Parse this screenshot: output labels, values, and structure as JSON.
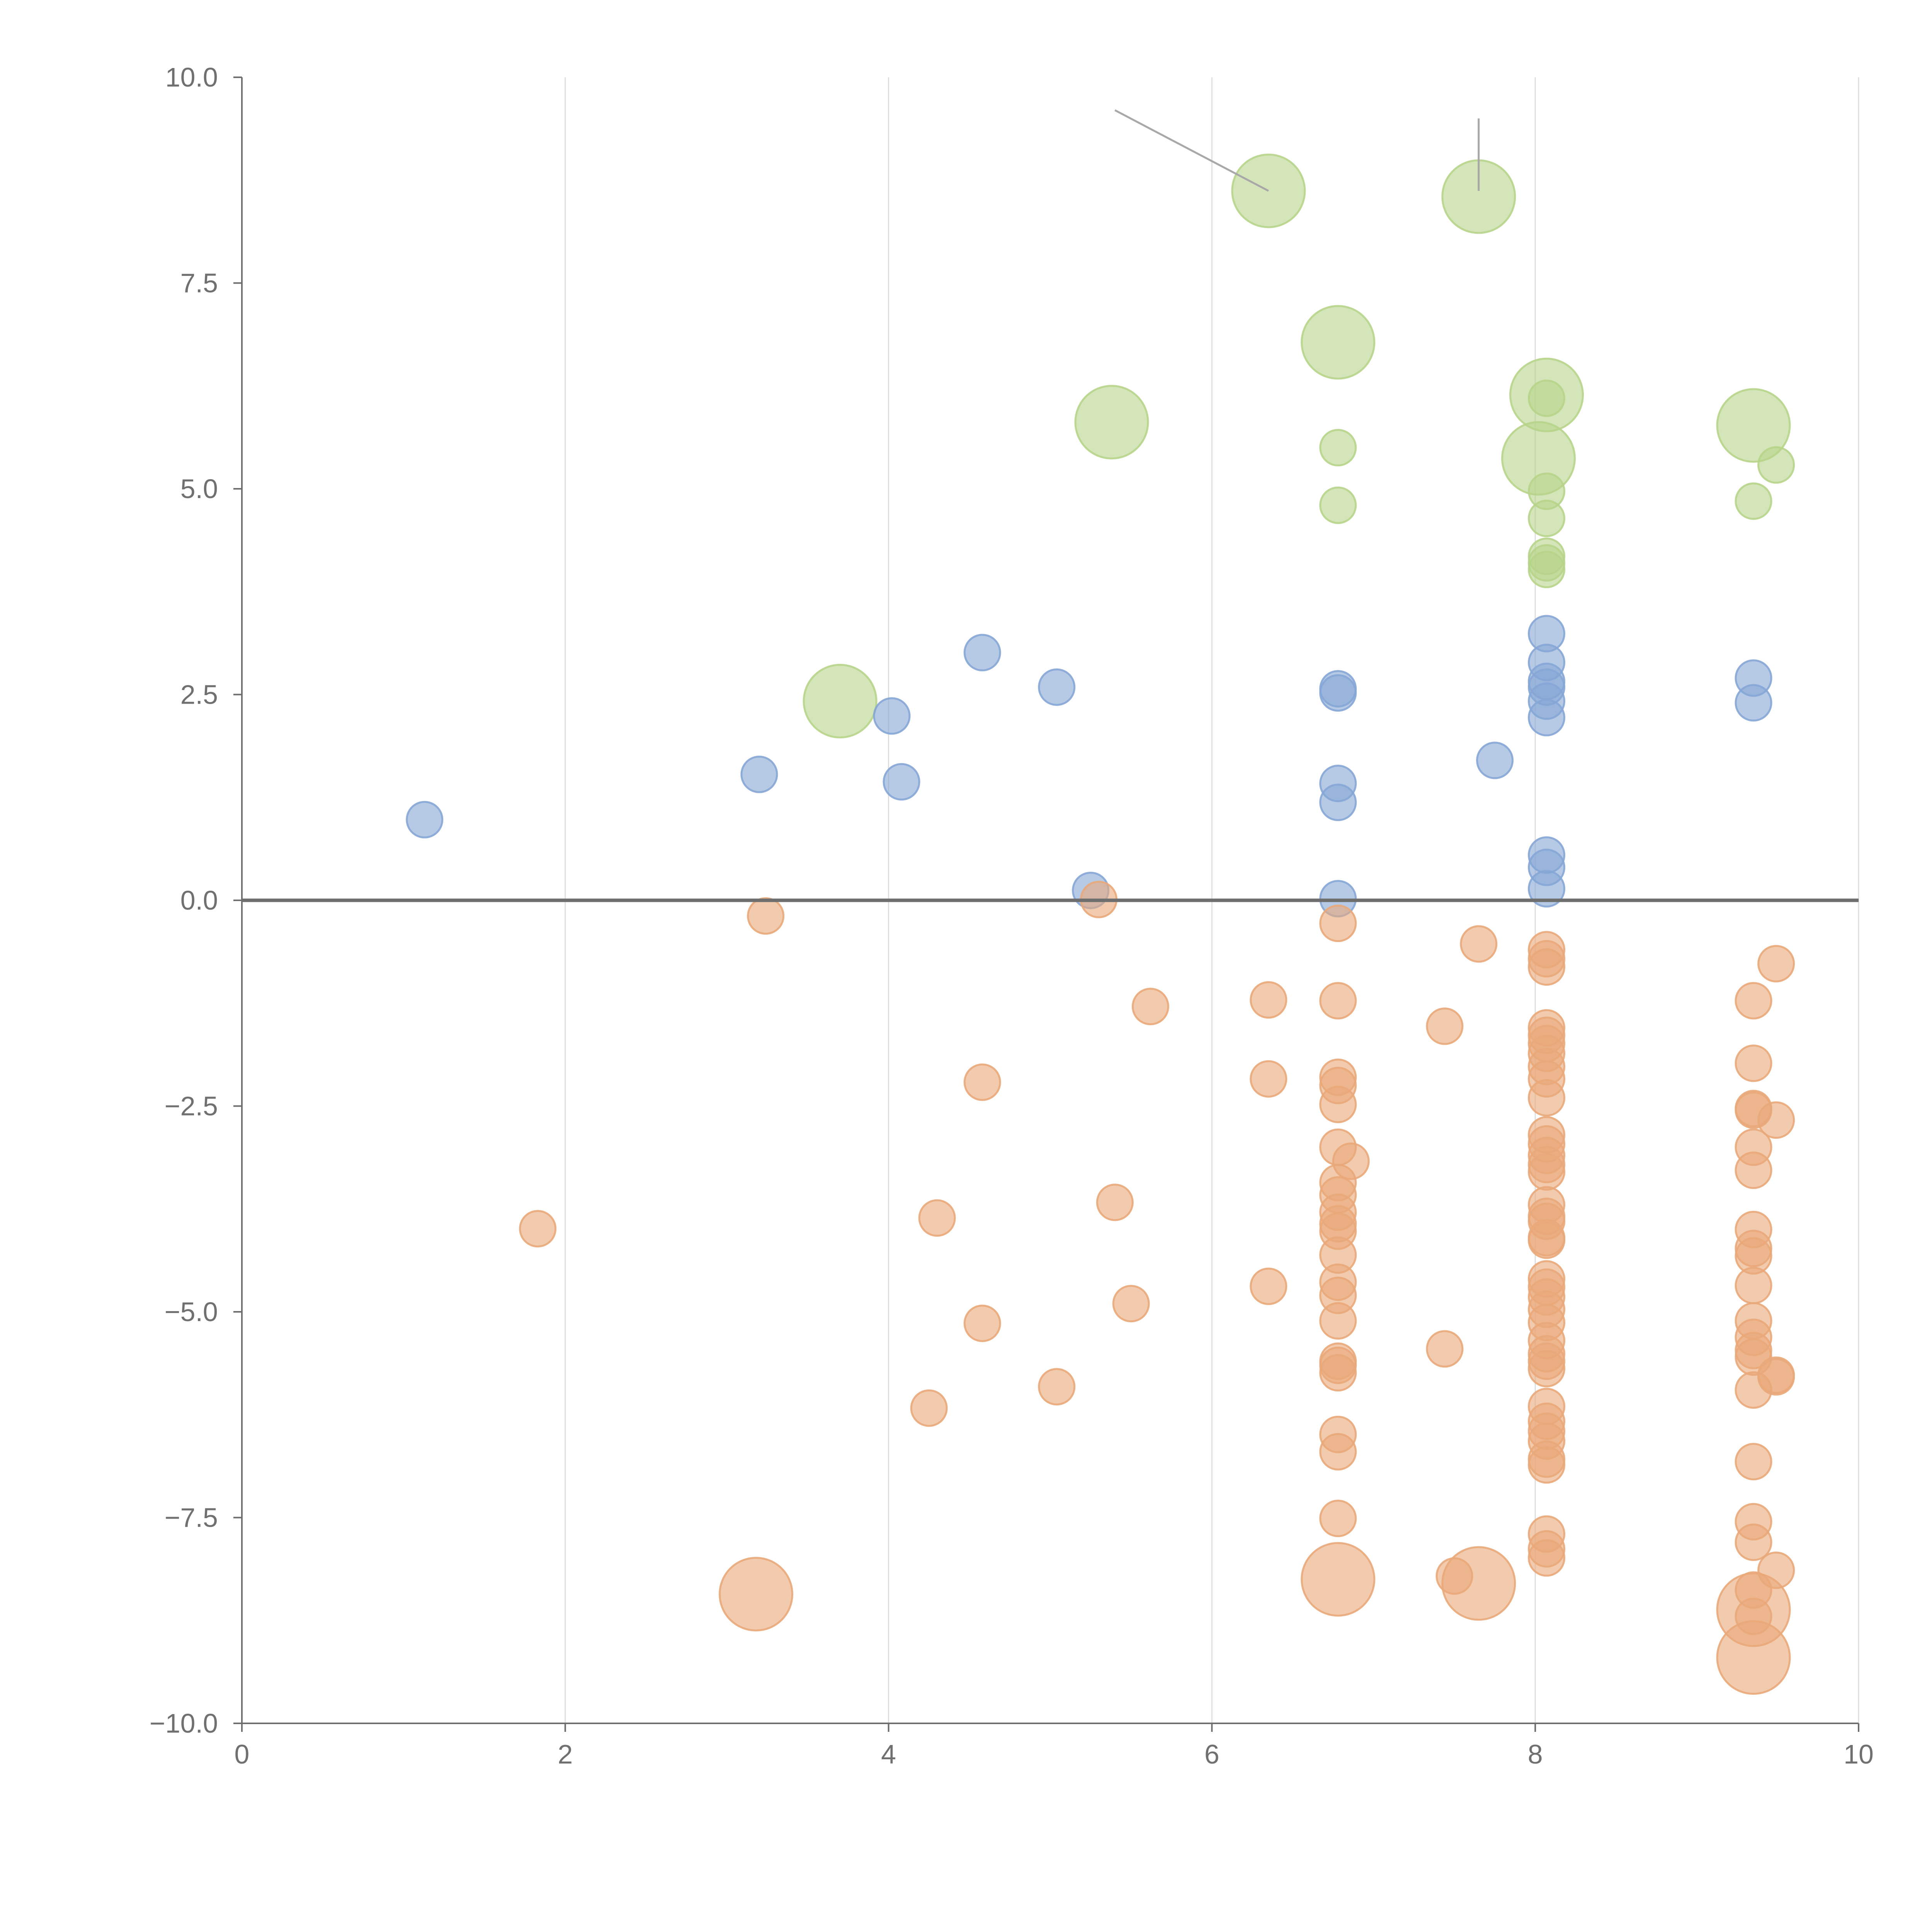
{
  "chart_data": {
    "type": "scatter",
    "title": "",
    "xlabel": "",
    "ylabel": "",
    "xlim": [
      0,
      10
    ],
    "ylim": [
      -10,
      10
    ],
    "grid": "vertical",
    "legend": "none",
    "x_ticks": [
      "0",
      "2",
      "4",
      "6",
      "8",
      "10"
    ],
    "y_ticks": [
      "10.0",
      "7.5",
      "5.0",
      "2.5",
      "0.0",
      "−2.5",
      "−5.0",
      "−7.5",
      "−10.0"
    ],
    "colors": {
      "green": "#b7d48b",
      "blue": "#86a6d6",
      "orange": "#e9a97a"
    },
    "series": [
      {
        "name": "green",
        "points": [
          [
            3.7,
            2.42,
            "large"
          ],
          [
            5.38,
            5.81,
            "large"
          ],
          [
            6.35,
            8.62,
            "large"
          ],
          [
            7.65,
            8.55,
            "large"
          ],
          [
            6.78,
            6.78,
            "large"
          ],
          [
            8.07,
            6.14,
            "large"
          ],
          [
            8.02,
            5.37,
            "large"
          ],
          [
            9.35,
            5.77,
            "large"
          ],
          [
            8.07,
            6.1,
            "small"
          ],
          [
            6.78,
            5.5,
            "small"
          ],
          [
            6.78,
            4.8,
            "small"
          ],
          [
            8.07,
            4.97,
            "small"
          ],
          [
            8.07,
            4.64,
            "small"
          ],
          [
            8.07,
            4.18,
            "small"
          ],
          [
            8.07,
            4.1,
            "small"
          ],
          [
            8.07,
            4.02,
            "small"
          ],
          [
            9.35,
            4.85,
            "small"
          ],
          [
            9.49,
            5.29,
            "small"
          ]
        ]
      },
      {
        "name": "blue",
        "points": [
          [
            1.13,
            0.98,
            "small"
          ],
          [
            3.2,
            1.53,
            "small"
          ],
          [
            4.02,
            2.24,
            "small"
          ],
          [
            4.08,
            1.44,
            "small"
          ],
          [
            4.58,
            3.01,
            "small"
          ],
          [
            5.04,
            2.59,
            "small"
          ],
          [
            5.25,
            0.12,
            "small"
          ],
          [
            6.78,
            2.57,
            "small"
          ],
          [
            6.78,
            2.52,
            "small"
          ],
          [
            6.78,
            1.42,
            "small"
          ],
          [
            6.78,
            1.19,
            "small"
          ],
          [
            6.78,
            0.02,
            "small"
          ],
          [
            7.75,
            1.7,
            "small"
          ],
          [
            8.07,
            3.24,
            "small"
          ],
          [
            8.07,
            2.89,
            "small"
          ],
          [
            8.07,
            2.66,
            "small"
          ],
          [
            8.07,
            2.59,
            "small"
          ],
          [
            8.07,
            2.42,
            "small"
          ],
          [
            8.07,
            2.22,
            "small"
          ],
          [
            8.07,
            0.55,
            "small"
          ],
          [
            8.07,
            0.4,
            "small"
          ],
          [
            8.07,
            0.14,
            "small"
          ],
          [
            9.35,
            2.7,
            "small"
          ],
          [
            9.35,
            2.4,
            "small"
          ]
        ]
      },
      {
        "name": "orange",
        "points": [
          [
            1.83,
            -3.99,
            "small"
          ],
          [
            3.24,
            -0.19,
            "small"
          ],
          [
            3.18,
            -8.43,
            "large"
          ],
          [
            4.25,
            -6.17,
            "small"
          ],
          [
            4.3,
            -3.86,
            "small"
          ],
          [
            4.58,
            -2.21,
            "small"
          ],
          [
            4.58,
            -5.14,
            "small"
          ],
          [
            5.04,
            -5.91,
            "small"
          ],
          [
            5.3,
            0.01,
            "small"
          ],
          [
            5.4,
            -3.67,
            "small"
          ],
          [
            5.5,
            -4.9,
            "small"
          ],
          [
            5.62,
            -1.29,
            "small"
          ],
          [
            6.35,
            -1.21,
            "small"
          ],
          [
            6.35,
            -2.17,
            "small"
          ],
          [
            6.35,
            -4.69,
            "small"
          ],
          [
            6.78,
            -0.28,
            "small"
          ],
          [
            6.78,
            -1.22,
            "small"
          ],
          [
            6.78,
            -2.15,
            "small"
          ],
          [
            6.78,
            -2.25,
            "small"
          ],
          [
            6.78,
            -2.48,
            "small"
          ],
          [
            6.78,
            -3.0,
            "small"
          ],
          [
            6.78,
            -3.43,
            "small"
          ],
          [
            6.78,
            -3.58,
            "small"
          ],
          [
            6.78,
            -3.79,
            "small"
          ],
          [
            6.78,
            -3.93,
            "small"
          ],
          [
            6.78,
            -4.02,
            "small"
          ],
          [
            6.78,
            -4.31,
            "small"
          ],
          [
            6.78,
            -4.64,
            "small"
          ],
          [
            6.78,
            -4.8,
            "small"
          ],
          [
            6.78,
            -5.11,
            "small"
          ],
          [
            6.78,
            -5.6,
            "small"
          ],
          [
            6.78,
            -5.65,
            "small"
          ],
          [
            6.78,
            -5.74,
            "small"
          ],
          [
            6.78,
            -6.49,
            "small"
          ],
          [
            6.78,
            -6.7,
            "small"
          ],
          [
            6.78,
            -7.51,
            "small"
          ],
          [
            6.78,
            -8.25,
            "large"
          ],
          [
            6.86,
            -3.17,
            "small"
          ],
          [
            7.44,
            -1.53,
            "small"
          ],
          [
            7.44,
            -5.45,
            "small"
          ],
          [
            7.5,
            -8.21,
            "small"
          ],
          [
            7.65,
            -0.53,
            "small"
          ],
          [
            7.65,
            -8.3,
            "large"
          ],
          [
            8.07,
            -0.6,
            "small"
          ],
          [
            8.07,
            -0.71,
            "small"
          ],
          [
            8.07,
            -0.81,
            "small"
          ],
          [
            8.07,
            -1.55,
            "small"
          ],
          [
            8.07,
            -1.64,
            "small"
          ],
          [
            8.07,
            -1.74,
            "small"
          ],
          [
            8.07,
            -1.86,
            "small"
          ],
          [
            8.07,
            -2.02,
            "small"
          ],
          [
            8.07,
            -2.17,
            "small"
          ],
          [
            8.07,
            -2.4,
            "small"
          ],
          [
            8.07,
            -2.85,
            "small"
          ],
          [
            8.07,
            -2.96,
            "small"
          ],
          [
            8.07,
            -3.1,
            "small"
          ],
          [
            8.07,
            -3.21,
            "small"
          ],
          [
            8.07,
            -3.3,
            "small"
          ],
          [
            8.07,
            -3.7,
            "small"
          ],
          [
            8.07,
            -3.84,
            "small"
          ],
          [
            8.07,
            -3.9,
            "small"
          ],
          [
            8.07,
            -4.1,
            "small"
          ],
          [
            8.07,
            -4.13,
            "small"
          ],
          [
            8.07,
            -4.6,
            "small"
          ],
          [
            8.07,
            -4.7,
            "small"
          ],
          [
            8.07,
            -4.82,
            "small"
          ],
          [
            8.07,
            -4.97,
            "small"
          ],
          [
            8.07,
            -5.13,
            "small"
          ],
          [
            8.07,
            -5.35,
            "small"
          ],
          [
            8.07,
            -5.51,
            "small"
          ],
          [
            8.07,
            -5.6,
            "small"
          ],
          [
            8.07,
            -5.69,
            "small"
          ],
          [
            8.07,
            -6.15,
            "small"
          ],
          [
            8.07,
            -6.33,
            "small"
          ],
          [
            8.07,
            -6.45,
            "small"
          ],
          [
            8.07,
            -6.57,
            "small"
          ],
          [
            8.07,
            -6.79,
            "small"
          ],
          [
            8.07,
            -6.86,
            "small"
          ],
          [
            8.07,
            -7.7,
            "small"
          ],
          [
            8.07,
            -7.88,
            "small"
          ],
          [
            8.07,
            -7.99,
            "small"
          ],
          [
            9.35,
            -1.22,
            "small"
          ],
          [
            9.35,
            -1.98,
            "small"
          ],
          [
            9.35,
            -2.53,
            "small"
          ],
          [
            9.35,
            -2.55,
            "small"
          ],
          [
            9.35,
            -3.0,
            "small"
          ],
          [
            9.35,
            -3.28,
            "small"
          ],
          [
            9.35,
            -4.0,
            "small"
          ],
          [
            9.35,
            -4.23,
            "small"
          ],
          [
            9.35,
            -4.32,
            "small"
          ],
          [
            9.35,
            -4.68,
            "small"
          ],
          [
            9.35,
            -5.11,
            "small"
          ],
          [
            9.35,
            -5.31,
            "small"
          ],
          [
            9.35,
            -5.47,
            "small"
          ],
          [
            9.35,
            -5.55,
            "small"
          ],
          [
            9.35,
            -5.95,
            "small"
          ],
          [
            9.35,
            -6.82,
            "small"
          ],
          [
            9.35,
            -7.55,
            "small"
          ],
          [
            9.35,
            -7.8,
            "small"
          ],
          [
            9.35,
            -8.38,
            "small"
          ],
          [
            9.35,
            -8.7,
            "small"
          ],
          [
            9.35,
            -8.62,
            "large"
          ],
          [
            9.35,
            -9.2,
            "large"
          ],
          [
            9.49,
            -0.77,
            "small"
          ],
          [
            9.49,
            -2.67,
            "small"
          ],
          [
            9.49,
            -5.77,
            "small"
          ],
          [
            9.49,
            -5.79,
            "small"
          ],
          [
            9.49,
            -8.14,
            "small"
          ]
        ]
      }
    ],
    "annotation_leaders": [
      {
        "from": [
          5.4,
          9.6
        ],
        "to": [
          6.35,
          8.62
        ]
      },
      {
        "from": [
          7.65,
          9.5
        ],
        "to": [
          7.65,
          8.62
        ]
      }
    ]
  }
}
